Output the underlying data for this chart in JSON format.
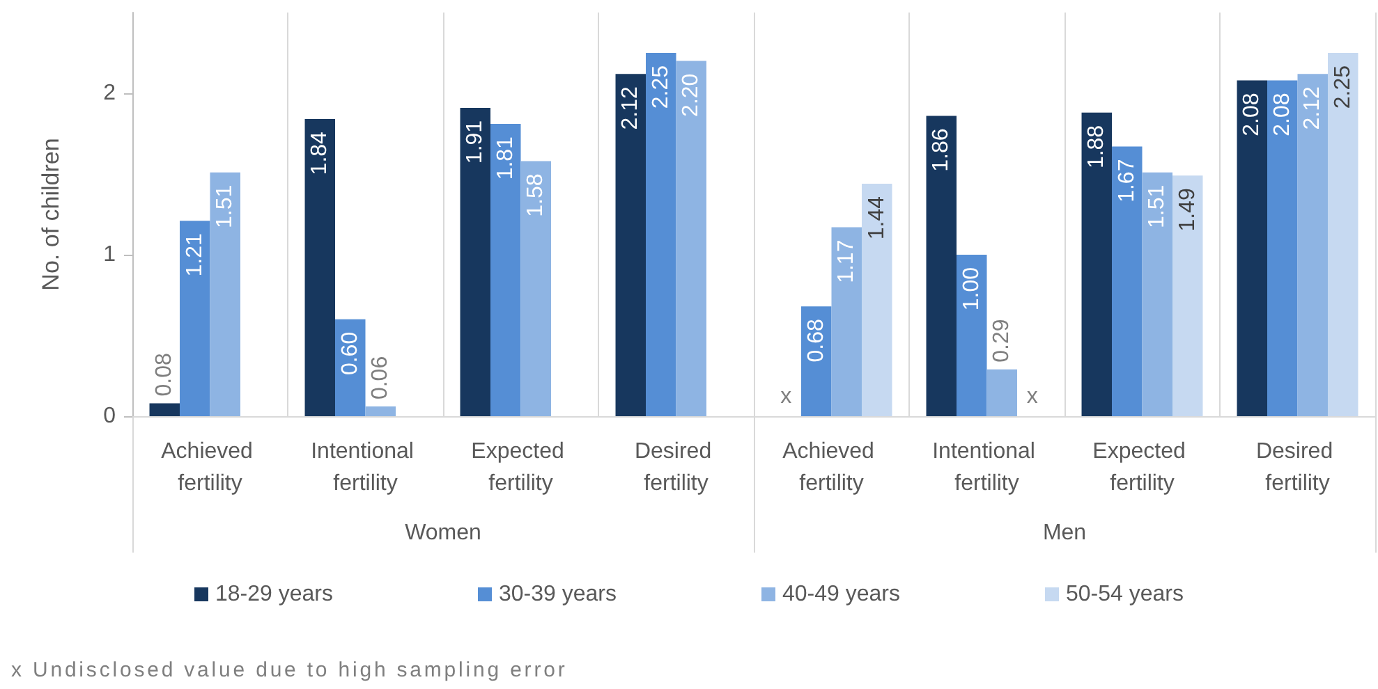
{
  "chart_data": {
    "type": "bar",
    "ylabel": "No. of children",
    "categories": [
      "Achieved fertility",
      "Intentional fertility",
      "Expected fertility",
      "Desired fertility",
      "Achieved fertility",
      "Intentional fertility",
      "Expected fertility",
      "Desired fertility"
    ],
    "series": [
      {
        "name": "18-29 years",
        "color": "#17375e",
        "values": [
          0.08,
          1.84,
          1.91,
          2.12,
          null,
          1.86,
          1.88,
          2.08
        ],
        "value_labels": [
          "0.08",
          "1.84",
          "1.91",
          "2.12",
          "x",
          "1.86",
          "1.88",
          "2.08"
        ]
      },
      {
        "name": "30-39 years",
        "color": "#558ed5",
        "values": [
          1.21,
          0.6,
          1.81,
          2.25,
          0.68,
          1.0,
          1.67,
          2.08
        ],
        "value_labels": [
          "1.21",
          "0.60",
          "1.81",
          "2.25",
          "0.68",
          "1.00",
          "1.67",
          "2.08"
        ]
      },
      {
        "name": "40-49 years",
        "color": "#8eb4e3",
        "values": [
          1.51,
          0.06,
          1.58,
          2.2,
          1.17,
          0.29,
          1.51,
          2.12
        ],
        "value_labels": [
          "1.51",
          "0.06",
          "1.58",
          "2.20",
          "1.17",
          "0.29",
          "1.51",
          "2.12"
        ]
      },
      {
        "name": "50-54 years",
        "color": "#c6d9f1",
        "values": [
          null,
          null,
          null,
          null,
          1.44,
          null,
          1.49,
          2.25
        ],
        "value_labels": [
          null,
          null,
          null,
          null,
          "1.44",
          "x",
          "1.49",
          "2.25"
        ]
      }
    ],
    "ylim": [
      0,
      2.5
    ],
    "yticks": [
      0,
      1,
      2
    ],
    "grid": "x",
    "legend": "bottom",
    "annotations": [
      "Women",
      "Men",
      "x Undisclosed value due to high sampling error"
    ]
  }
}
